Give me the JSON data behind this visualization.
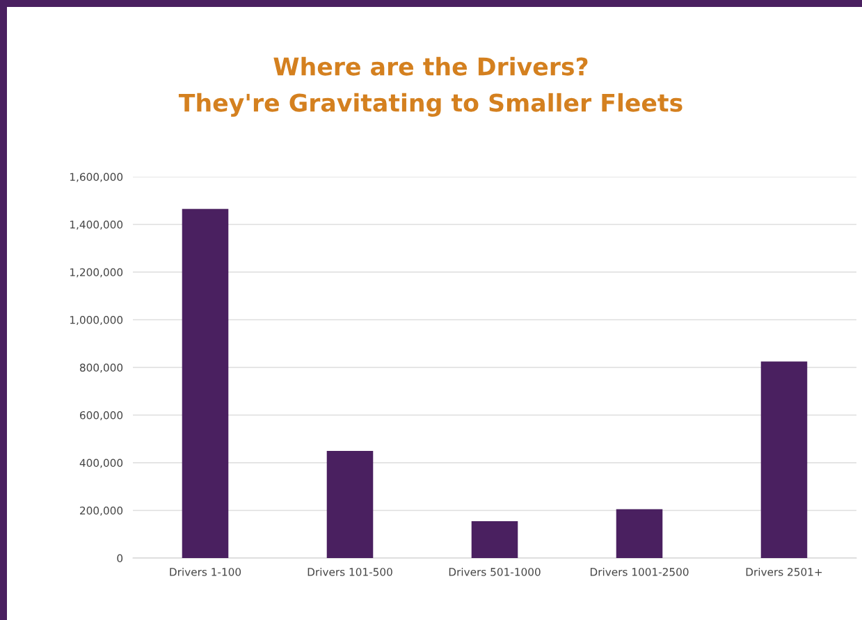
{
  "chart_data": {
    "type": "bar",
    "title": "Where are the Drivers?\nThey're Gravitating to Smaller Fleets",
    "categories": [
      "Drivers 1-100",
      "Drivers 101-500",
      "Drivers 501-1000",
      "Drivers 1001-2500",
      "Drivers 2501+"
    ],
    "values": [
      1465000,
      450000,
      155000,
      205000,
      825000
    ],
    "color": "#4a2060",
    "ylim": [
      0,
      1600000
    ],
    "yticks": [
      {
        "value": 0,
        "label": "0"
      },
      {
        "value": 200000,
        "label": "200,000"
      },
      {
        "value": 400000,
        "label": "400,000"
      },
      {
        "value": 600000,
        "label": "600,000"
      },
      {
        "value": 800000,
        "label": "800,000"
      },
      {
        "value": 1000000,
        "label": "1,000,000"
      },
      {
        "value": 1200000,
        "label": "1,200,000"
      },
      {
        "value": 1400000,
        "label": "1,400,000"
      },
      {
        "value": 1600000,
        "label": "1,600,000"
      }
    ],
    "grid": "y",
    "legend": false
  }
}
